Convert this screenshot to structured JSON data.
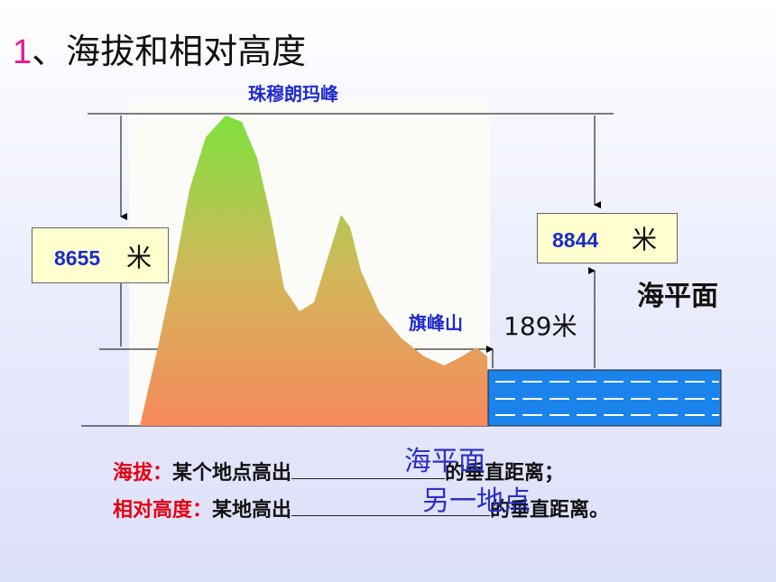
{
  "title": {
    "number": "1",
    "text": "、海拔和相对高度"
  },
  "labels": {
    "everest": "珠穆朗玛峰",
    "qifeng": "旗峰山",
    "relative_value": "8655",
    "relative_unit": "米",
    "altitude_value": "8844",
    "altitude_unit": "米",
    "sea_level": "海平面",
    "hill_height": "189米"
  },
  "definitions": {
    "altitude_key": "海拔：",
    "altitude_pre": "某个地点高出",
    "altitude_post": "的垂直距离；",
    "relative_key": "相对高度：",
    "relative_pre": "某地高出",
    "relative_post": "的垂直距离。"
  },
  "answers": {
    "altitude": "海平面",
    "relative": "另一地点"
  },
  "colors": {
    "mountain_top": "#7ee23e",
    "mountain_bottom": "#f7895c",
    "sea": "#1a84ec",
    "label_blue": "#1e2acb",
    "key_red": "#e60012",
    "title_pink": "#e8179a"
  }
}
